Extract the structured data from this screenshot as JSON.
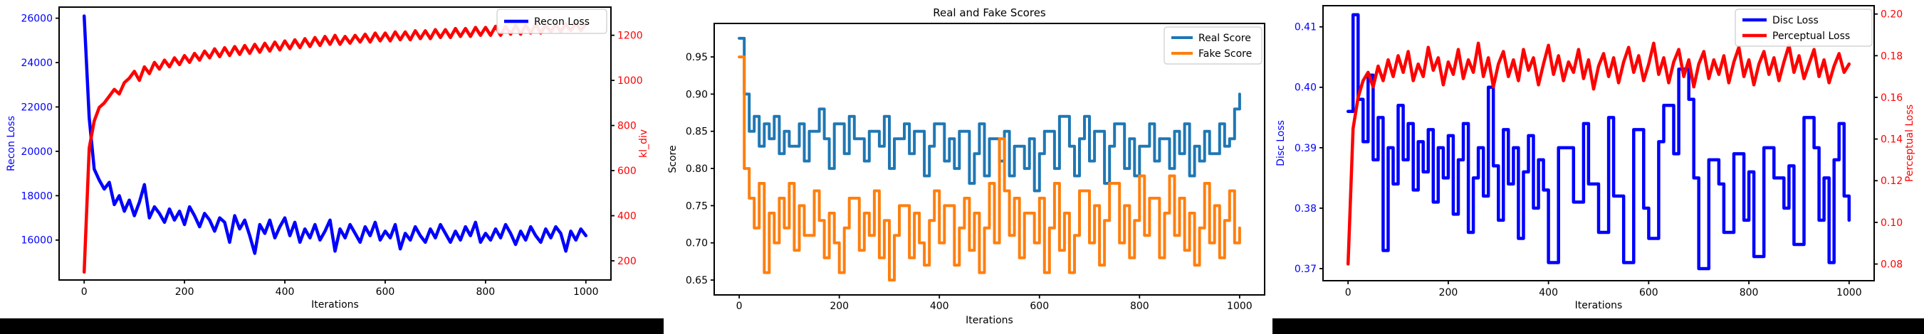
{
  "figure_strip": {
    "background": "#000000",
    "panel_background": "#ffffff"
  },
  "chart_data": [
    {
      "id": "recon-kl",
      "type": "line",
      "title": "",
      "xlabel": "Iterations",
      "x": {
        "lim": [
          -50,
          1050
        ],
        "ticks": [
          0,
          200,
          400,
          600,
          800,
          1000
        ],
        "tick_labels": [
          "0",
          "200",
          "400",
          "600",
          "800",
          "1000"
        ]
      },
      "axes": {
        "left": {
          "label": "Recon Loss",
          "color": "#0000ff",
          "lim": [
            14200,
            26500
          ],
          "ticks": [
            16000,
            18000,
            20000,
            22000,
            24000,
            26000
          ],
          "tick_labels": [
            "16000",
            "18000",
            "20000",
            "22000",
            "24000",
            "26000"
          ]
        },
        "right": {
          "label": "kl_div",
          "color": "#ff0000",
          "lim": [
            115,
            1325
          ],
          "ticks": [
            200,
            400,
            600,
            800,
            1000,
            1200
          ],
          "tick_labels": [
            "200",
            "400",
            "600",
            "800",
            "1000",
            "1200"
          ]
        }
      },
      "legend": {
        "entries": [
          {
            "label": "Recon Loss",
            "color": "#0000ff"
          }
        ]
      },
      "series": [
        {
          "name": "Recon Loss",
          "axis": "left",
          "color": "#0000ff",
          "mode": "line",
          "x_start": 0,
          "x_step": 10,
          "values": [
            26100,
            21500,
            19200,
            18700,
            18300,
            18600,
            17600,
            18000,
            17300,
            17800,
            17100,
            17700,
            18500,
            17000,
            17500,
            17200,
            16800,
            17400,
            16900,
            17300,
            16700,
            17500,
            17100,
            16600,
            17200,
            16900,
            16400,
            17000,
            16800,
            15900,
            17100,
            16500,
            16900,
            16200,
            15400,
            16700,
            16300,
            16900,
            16100,
            16600,
            17000,
            16200,
            16800,
            15900,
            16500,
            16100,
            16700,
            16000,
            16400,
            16900,
            15500,
            16500,
            16100,
            16700,
            16300,
            15900,
            16600,
            16200,
            16800,
            16000,
            16400,
            16100,
            16700,
            15600,
            16300,
            16000,
            16600,
            16200,
            15900,
            16500,
            16100,
            16700,
            16300,
            15900,
            16400,
            16000,
            16600,
            16200,
            16800,
            15900,
            16300,
            16000,
            16500,
            16100,
            16700,
            16300,
            15800,
            16400,
            16000,
            16600,
            16200,
            15900,
            16500,
            16100,
            16600,
            16300,
            15500,
            16400,
            16000,
            16500,
            16200
          ]
        },
        {
          "name": "kl_div",
          "axis": "right",
          "color": "#ff0000",
          "mode": "line",
          "x_start": 0,
          "x_step": 10,
          "values": [
            150,
            700,
            820,
            880,
            900,
            930,
            960,
            940,
            990,
            1010,
            1040,
            1000,
            1060,
            1030,
            1080,
            1050,
            1090,
            1060,
            1100,
            1070,
            1110,
            1080,
            1120,
            1090,
            1130,
            1100,
            1140,
            1105,
            1145,
            1110,
            1150,
            1115,
            1155,
            1120,
            1160,
            1125,
            1165,
            1130,
            1170,
            1135,
            1175,
            1140,
            1180,
            1145,
            1185,
            1150,
            1190,
            1155,
            1195,
            1160,
            1200,
            1160,
            1195,
            1165,
            1200,
            1170,
            1205,
            1170,
            1210,
            1175,
            1210,
            1175,
            1215,
            1180,
            1215,
            1180,
            1220,
            1185,
            1220,
            1185,
            1225,
            1190,
            1225,
            1190,
            1230,
            1195,
            1230,
            1195,
            1235,
            1200,
            1235,
            1200,
            1240,
            1200,
            1240,
            1205,
            1245,
            1205,
            1245,
            1210,
            1250,
            1210,
            1245,
            1215,
            1250,
            1215,
            1250,
            1220,
            1255,
            1220,
            1250
          ]
        }
      ]
    },
    {
      "id": "scores",
      "type": "line",
      "title": "Real and Fake Scores",
      "xlabel": "Iterations",
      "x": {
        "lim": [
          -50,
          1050
        ],
        "ticks": [
          0,
          200,
          400,
          600,
          800,
          1000
        ],
        "tick_labels": [
          "0",
          "200",
          "400",
          "600",
          "800",
          "1000"
        ]
      },
      "axes": {
        "left": {
          "label": "Score",
          "color": "#000000",
          "lim": [
            0.63,
            0.995
          ],
          "ticks": [
            0.65,
            0.7,
            0.75,
            0.8,
            0.85,
            0.9,
            0.95
          ],
          "tick_labels": [
            "0.65",
            "0.70",
            "0.75",
            "0.80",
            "0.85",
            "0.90",
            "0.95"
          ]
        }
      },
      "legend": {
        "entries": [
          {
            "label": "Real Score",
            "color": "#1f77b4"
          },
          {
            "label": "Fake Score",
            "color": "#ff7f0e"
          }
        ]
      },
      "series": [
        {
          "name": "Real Score",
          "axis": "left",
          "color": "#1f77b4",
          "mode": "step",
          "x_start": 0,
          "x_step": 10,
          "values": [
            0.975,
            0.9,
            0.85,
            0.87,
            0.83,
            0.86,
            0.84,
            0.87,
            0.82,
            0.85,
            0.83,
            0.83,
            0.86,
            0.81,
            0.85,
            0.85,
            0.88,
            0.84,
            0.8,
            0.86,
            0.86,
            0.82,
            0.87,
            0.84,
            0.84,
            0.81,
            0.85,
            0.85,
            0.83,
            0.87,
            0.8,
            0.84,
            0.84,
            0.86,
            0.82,
            0.85,
            0.85,
            0.79,
            0.83,
            0.86,
            0.86,
            0.81,
            0.84,
            0.8,
            0.85,
            0.85,
            0.78,
            0.82,
            0.86,
            0.79,
            0.84,
            0.84,
            0.81,
            0.85,
            0.79,
            0.83,
            0.83,
            0.8,
            0.84,
            0.77,
            0.82,
            0.85,
            0.85,
            0.8,
            0.87,
            0.87,
            0.83,
            0.79,
            0.84,
            0.87,
            0.81,
            0.85,
            0.85,
            0.78,
            0.83,
            0.86,
            0.86,
            0.8,
            0.84,
            0.79,
            0.83,
            0.83,
            0.86,
            0.81,
            0.84,
            0.84,
            0.8,
            0.85,
            0.82,
            0.86,
            0.79,
            0.83,
            0.81,
            0.85,
            0.82,
            0.82,
            0.86,
            0.83,
            0.84,
            0.88,
            0.9
          ]
        },
        {
          "name": "Fake Score",
          "axis": "left",
          "color": "#ff7f0e",
          "mode": "step",
          "x_start": 0,
          "x_step": 10,
          "values": [
            0.95,
            0.8,
            0.76,
            0.72,
            0.78,
            0.66,
            0.74,
            0.7,
            0.76,
            0.72,
            0.78,
            0.69,
            0.75,
            0.71,
            0.71,
            0.77,
            0.73,
            0.68,
            0.74,
            0.7,
            0.66,
            0.72,
            0.76,
            0.76,
            0.69,
            0.74,
            0.71,
            0.77,
            0.68,
            0.73,
            0.65,
            0.71,
            0.75,
            0.75,
            0.68,
            0.74,
            0.7,
            0.67,
            0.73,
            0.77,
            0.7,
            0.75,
            0.75,
            0.67,
            0.72,
            0.76,
            0.69,
            0.74,
            0.66,
            0.72,
            0.78,
            0.7,
            0.84,
            0.77,
            0.71,
            0.76,
            0.68,
            0.74,
            0.74,
            0.7,
            0.76,
            0.66,
            0.72,
            0.78,
            0.69,
            0.74,
            0.66,
            0.71,
            0.77,
            0.77,
            0.7,
            0.75,
            0.67,
            0.73,
            0.78,
            0.78,
            0.7,
            0.75,
            0.68,
            0.73,
            0.79,
            0.71,
            0.76,
            0.76,
            0.68,
            0.74,
            0.79,
            0.71,
            0.76,
            0.69,
            0.74,
            0.67,
            0.72,
            0.78,
            0.7,
            0.75,
            0.68,
            0.73,
            0.77,
            0.7,
            0.72
          ]
        }
      ]
    },
    {
      "id": "disc-perceptual",
      "type": "line",
      "title": "",
      "xlabel": "Iterations",
      "x": {
        "lim": [
          -50,
          1050
        ],
        "ticks": [
          0,
          200,
          400,
          600,
          800,
          1000
        ],
        "tick_labels": [
          "0",
          "200",
          "400",
          "600",
          "800",
          "1000"
        ]
      },
      "axes": {
        "left": {
          "label": "Disc Loss",
          "color": "#0000ff",
          "lim": [
            0.368,
            0.4135
          ],
          "ticks": [
            0.37,
            0.38,
            0.39,
            0.4,
            0.41
          ],
          "tick_labels": [
            "0.37",
            "0.38",
            "0.39",
            "0.40",
            "0.41"
          ]
        },
        "right": {
          "label": "Perceptual Loss",
          "color": "#ff0000",
          "lim": [
            0.072,
            0.204
          ],
          "ticks": [
            0.08,
            0.1,
            0.12,
            0.14,
            0.16,
            0.18,
            0.2
          ],
          "tick_labels": [
            "0.08",
            "0.10",
            "0.12",
            "0.14",
            "0.16",
            "0.18",
            "0.20"
          ]
        }
      },
      "legend": {
        "entries": [
          {
            "label": "Disc Loss",
            "color": "#0000ff"
          },
          {
            "label": "Perceptual Loss",
            "color": "#ff0000"
          }
        ]
      },
      "series": [
        {
          "name": "Disc Loss",
          "axis": "left",
          "color": "#0000ff",
          "mode": "step",
          "x_start": 0,
          "x_step": 10,
          "values": [
            0.396,
            0.412,
            0.398,
            0.391,
            0.402,
            0.388,
            0.395,
            0.373,
            0.39,
            0.384,
            0.397,
            0.388,
            0.394,
            0.383,
            0.391,
            0.386,
            0.393,
            0.381,
            0.39,
            0.385,
            0.392,
            0.379,
            0.388,
            0.394,
            0.376,
            0.385,
            0.39,
            0.382,
            0.4,
            0.387,
            0.378,
            0.393,
            0.384,
            0.39,
            0.375,
            0.386,
            0.392,
            0.38,
            0.388,
            0.383,
            0.371,
            0.371,
            0.39,
            0.39,
            0.39,
            0.381,
            0.381,
            0.394,
            0.384,
            0.384,
            0.376,
            0.376,
            0.395,
            0.382,
            0.382,
            0.371,
            0.371,
            0.393,
            0.393,
            0.38,
            0.375,
            0.375,
            0.391,
            0.397,
            0.397,
            0.389,
            0.403,
            0.403,
            0.398,
            0.385,
            0.37,
            0.37,
            0.388,
            0.388,
            0.384,
            0.376,
            0.376,
            0.389,
            0.389,
            0.378,
            0.386,
            0.372,
            0.372,
            0.39,
            0.39,
            0.385,
            0.385,
            0.38,
            0.387,
            0.374,
            0.374,
            0.395,
            0.395,
            0.39,
            0.378,
            0.385,
            0.371,
            0.388,
            0.394,
            0.382,
            0.378
          ]
        },
        {
          "name": "Perceptual Loss",
          "axis": "right",
          "color": "#ff0000",
          "mode": "line",
          "x_start": 0,
          "x_step": 10,
          "values": [
            0.08,
            0.145,
            0.16,
            0.168,
            0.172,
            0.165,
            0.175,
            0.168,
            0.178,
            0.17,
            0.18,
            0.172,
            0.182,
            0.168,
            0.176,
            0.17,
            0.184,
            0.173,
            0.179,
            0.166,
            0.177,
            0.171,
            0.183,
            0.169,
            0.178,
            0.172,
            0.186,
            0.17,
            0.179,
            0.165,
            0.176,
            0.182,
            0.17,
            0.178,
            0.168,
            0.183,
            0.173,
            0.179,
            0.166,
            0.176,
            0.185,
            0.171,
            0.18,
            0.168,
            0.177,
            0.172,
            0.183,
            0.169,
            0.178,
            0.164,
            0.175,
            0.181,
            0.17,
            0.179,
            0.167,
            0.177,
            0.184,
            0.172,
            0.18,
            0.168,
            0.176,
            0.186,
            0.171,
            0.179,
            0.167,
            0.177,
            0.183,
            0.17,
            0.178,
            0.165,
            0.176,
            0.182,
            0.169,
            0.178,
            0.171,
            0.18,
            0.167,
            0.177,
            0.184,
            0.17,
            0.178,
            0.166,
            0.176,
            0.182,
            0.171,
            0.179,
            0.168,
            0.177,
            0.185,
            0.172,
            0.18,
            0.169,
            0.176,
            0.183,
            0.17,
            0.178,
            0.167,
            0.175,
            0.181,
            0.172,
            0.176
          ]
        }
      ]
    }
  ]
}
